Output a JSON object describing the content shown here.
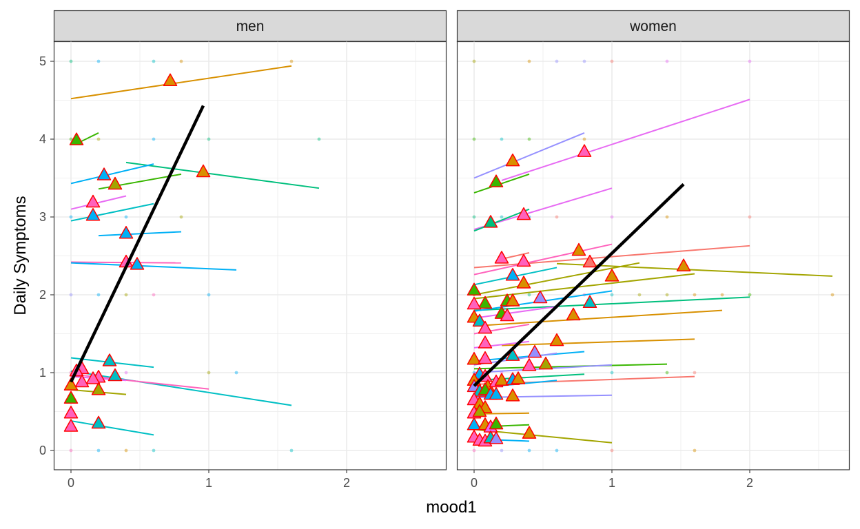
{
  "chart_data": {
    "type": "scatter",
    "xlabel": "mood1",
    "ylabel": "Daily Symptoms",
    "xlim": [
      -0.12,
      2.72
    ],
    "ylim": [
      -0.25,
      5.25
    ],
    "x_ticks": [
      "0",
      "1",
      "2"
    ],
    "y_ticks": [
      "0",
      "1",
      "2",
      "3",
      "4",
      "5"
    ],
    "grid": true,
    "colors": {
      "strip_fill": "#d9d9d9",
      "panel_border": "#333333",
      "grid_major": "#ebebeb",
      "marker_edge": "#ff0000",
      "overall_line": "#000000",
      "palette": [
        "#F8766D",
        "#D89000",
        "#A3A500",
        "#39B600",
        "#00BF7D",
        "#00BFC4",
        "#00B0F6",
        "#9590FF",
        "#E76BF3",
        "#FF62BC"
      ]
    },
    "panels": [
      {
        "name": "men",
        "overall_line": [
          [
            0,
            0.88
          ],
          [
            0.96,
            4.43
          ]
        ],
        "subject_lines": [
          [
            0,
            4.52,
            1.6,
            4.94,
            1
          ],
          [
            0.05,
            3.95,
            0.2,
            4.08,
            3
          ],
          [
            0.4,
            3.7,
            1.8,
            3.37,
            4
          ],
          [
            0,
            3.43,
            0.6,
            3.68,
            6
          ],
          [
            0.2,
            3.36,
            0.8,
            3.55,
            3
          ],
          [
            0,
            3.1,
            0.4,
            3.27,
            8
          ],
          [
            0,
            2.95,
            0.6,
            3.17,
            5
          ],
          [
            0.2,
            2.76,
            0.8,
            2.81,
            6
          ],
          [
            0,
            2.42,
            0.8,
            2.41,
            9
          ],
          [
            0,
            2.41,
            1.2,
            2.32,
            6
          ],
          [
            0,
            1.19,
            0.6,
            1.07,
            5
          ],
          [
            0,
            1.02,
            1.6,
            0.58,
            5
          ],
          [
            0,
            0.98,
            1.0,
            0.79,
            9
          ],
          [
            0,
            0.95,
            0.4,
            0.9,
            8
          ],
          [
            0,
            0.78,
            0.4,
            0.72,
            2
          ],
          [
            0,
            0.38,
            0.6,
            0.2,
            5
          ]
        ],
        "points": [
          [
            0,
            5,
            4
          ],
          [
            0.2,
            5,
            6
          ],
          [
            0.6,
            5,
            5
          ],
          [
            0.8,
            5,
            1
          ],
          [
            1.6,
            5,
            1
          ],
          [
            0,
            4,
            3
          ],
          [
            0.2,
            4,
            2
          ],
          [
            0.6,
            4,
            6
          ],
          [
            1.0,
            4,
            4
          ],
          [
            1.8,
            4,
            4
          ],
          [
            0,
            3,
            6
          ],
          [
            0.4,
            3,
            6
          ],
          [
            0.8,
            3,
            2
          ],
          [
            0,
            2,
            7
          ],
          [
            0.2,
            2,
            6
          ],
          [
            0.4,
            2,
            2
          ],
          [
            0.6,
            2,
            9
          ],
          [
            1.0,
            2,
            6
          ],
          [
            0,
            1,
            9
          ],
          [
            0.4,
            1,
            8
          ],
          [
            1.0,
            1,
            2
          ],
          [
            1.2,
            1,
            6
          ],
          [
            0,
            0,
            9
          ],
          [
            0.2,
            0,
            6
          ],
          [
            0.4,
            0,
            1
          ],
          [
            0.6,
            0,
            5
          ],
          [
            1.6,
            0,
            5
          ]
        ],
        "means": [
          [
            0.72,
            4.75,
            1
          ],
          [
            0.04,
            3.99,
            3
          ],
          [
            0.96,
            3.58,
            1
          ],
          [
            0.24,
            3.54,
            6
          ],
          [
            0.32,
            3.42,
            2
          ],
          [
            0.16,
            3.19,
            9
          ],
          [
            0.16,
            3.02,
            6
          ],
          [
            0.4,
            2.79,
            6
          ],
          [
            0.4,
            2.42,
            9
          ],
          [
            0.48,
            2.39,
            6
          ],
          [
            0.28,
            1.15,
            5
          ],
          [
            0.08,
            1.05,
            9
          ],
          [
            0.04,
            1.02,
            9
          ],
          [
            0.2,
            0.94,
            9
          ],
          [
            0.32,
            0.96,
            5
          ],
          [
            0.16,
            0.92,
            9
          ],
          [
            0.08,
            0.88,
            9
          ],
          [
            0.2,
            0.78,
            2
          ],
          [
            0,
            0.84,
            1
          ],
          [
            0,
            0.67,
            3
          ],
          [
            0,
            0.48,
            9
          ],
          [
            0,
            0.31,
            9
          ],
          [
            0.2,
            0.35,
            5
          ]
        ]
      },
      {
        "name": "women",
        "overall_line": [
          [
            0,
            0.83
          ],
          [
            1.52,
            3.42
          ]
        ],
        "subject_lines": [
          [
            0,
            3.5,
            0.8,
            4.08,
            7
          ],
          [
            0.2,
            3.47,
            2.0,
            4.51,
            8
          ],
          [
            0,
            3.31,
            0.4,
            3.55,
            3
          ],
          [
            0,
            2.84,
            1.0,
            3.37,
            8
          ],
          [
            0,
            2.82,
            0.4,
            3.1,
            4
          ],
          [
            0,
            2.35,
            2.0,
            2.63,
            0
          ],
          [
            0,
            2.26,
            1.0,
            2.65,
            9
          ],
          [
            0.2,
            2.46,
            0.4,
            2.54,
            0
          ],
          [
            0,
            2.0,
            1.2,
            2.41,
            2
          ],
          [
            0.6,
            2.4,
            2.6,
            2.24,
            2
          ],
          [
            0,
            2.13,
            0.6,
            2.35,
            5
          ],
          [
            0,
            1.95,
            1.6,
            2.27,
            2
          ],
          [
            0,
            1.8,
            2.0,
            1.97,
            4
          ],
          [
            0,
            1.79,
            1.0,
            2.05,
            6
          ],
          [
            0,
            1.7,
            0.6,
            1.85,
            8
          ],
          [
            0,
            1.5,
            0.4,
            1.62,
            9
          ],
          [
            0,
            1.6,
            1.8,
            1.8,
            1
          ],
          [
            0.2,
            1.35,
            1.6,
            1.43,
            1
          ],
          [
            0,
            1.32,
            0.4,
            1.4,
            8
          ],
          [
            0,
            1.15,
            0.8,
            1.27,
            6
          ],
          [
            0,
            1.1,
            0.6,
            1.25,
            7
          ],
          [
            0,
            1.05,
            1.4,
            1.11,
            3
          ],
          [
            0,
            1.0,
            1.0,
            1.1,
            7
          ],
          [
            0,
            0.85,
            1.6,
            0.95,
            0
          ],
          [
            0,
            0.8,
            0.6,
            0.9,
            6
          ],
          [
            0,
            0.9,
            0.8,
            0.98,
            4
          ],
          [
            0,
            0.68,
            1.0,
            0.71,
            7
          ],
          [
            0,
            0.47,
            0.4,
            0.48,
            1
          ],
          [
            0,
            0.3,
            0.4,
            0.33,
            3
          ],
          [
            0,
            0.27,
            1.0,
            0.1,
            2
          ],
          [
            0.1,
            0.14,
            0.4,
            0.12,
            6
          ]
        ],
        "points": [
          [
            0,
            5,
            2
          ],
          [
            0.4,
            5,
            1
          ],
          [
            0.6,
            5,
            7
          ],
          [
            0.8,
            5,
            7
          ],
          [
            1.0,
            5,
            0
          ],
          [
            1.4,
            5,
            8
          ],
          [
            2.0,
            5,
            8
          ],
          [
            0,
            4,
            3
          ],
          [
            0.2,
            4,
            5
          ],
          [
            0.4,
            4,
            3
          ],
          [
            0.8,
            4,
            1
          ],
          [
            0,
            3,
            4
          ],
          [
            0.2,
            3,
            5
          ],
          [
            0.4,
            3,
            6
          ],
          [
            0.6,
            3,
            0
          ],
          [
            1.0,
            3,
            8
          ],
          [
            1.4,
            3,
            1
          ],
          [
            2.0,
            3,
            0
          ],
          [
            0,
            2,
            2
          ],
          [
            0.4,
            2,
            4
          ],
          [
            0.8,
            2,
            9
          ],
          [
            1.0,
            2,
            5
          ],
          [
            1.2,
            2,
            2
          ],
          [
            1.4,
            2,
            2
          ],
          [
            1.6,
            2,
            1
          ],
          [
            1.8,
            2,
            1
          ],
          [
            2.0,
            2,
            3
          ],
          [
            2.6,
            2,
            1
          ],
          [
            0,
            1,
            6
          ],
          [
            0.2,
            1,
            8
          ],
          [
            1.0,
            1,
            5
          ],
          [
            1.4,
            1,
            3
          ],
          [
            1.6,
            1,
            0
          ],
          [
            0,
            0,
            9
          ],
          [
            0.2,
            0,
            7
          ],
          [
            0.4,
            0,
            6
          ],
          [
            0.6,
            0,
            6
          ],
          [
            1.0,
            0,
            0
          ],
          [
            1.6,
            0,
            1
          ]
        ],
        "means": [
          [
            0.8,
            3.84,
            9
          ],
          [
            0.28,
            3.72,
            1
          ],
          [
            0.16,
            3.45,
            3
          ],
          [
            0.36,
            3.03,
            9
          ],
          [
            0.12,
            2.93,
            4
          ],
          [
            0.76,
            2.57,
            1
          ],
          [
            0.2,
            2.47,
            9
          ],
          [
            0.36,
            2.43,
            9
          ],
          [
            0.84,
            2.42,
            0
          ],
          [
            1.52,
            2.37,
            1
          ],
          [
            0.28,
            2.25,
            6
          ],
          [
            0.36,
            2.15,
            1
          ],
          [
            1.0,
            2.24,
            1
          ],
          [
            0,
            2.06,
            3
          ],
          [
            0.48,
            1.96,
            7
          ],
          [
            0.84,
            1.9,
            5
          ],
          [
            0.24,
            1.92,
            3
          ],
          [
            0.28,
            1.92,
            1
          ],
          [
            0.08,
            1.89,
            3
          ],
          [
            0,
            1.88,
            9
          ],
          [
            0.2,
            1.76,
            3
          ],
          [
            0.24,
            1.73,
            9
          ],
          [
            0.72,
            1.74,
            1
          ],
          [
            0,
            1.71,
            1
          ],
          [
            0.04,
            1.66,
            5
          ],
          [
            0.08,
            1.57,
            9
          ],
          [
            0.6,
            1.41,
            1
          ],
          [
            0.08,
            1.38,
            9
          ],
          [
            0.28,
            1.22,
            5
          ],
          [
            0.44,
            1.26,
            7
          ],
          [
            0,
            1.17,
            1
          ],
          [
            0.08,
            1.18,
            9
          ],
          [
            0.52,
            1.11,
            2
          ],
          [
            0.4,
            1.09,
            9
          ],
          [
            0.04,
            0.98,
            6
          ],
          [
            0.08,
            0.95,
            9
          ],
          [
            0,
            0.9,
            1
          ],
          [
            0.1,
            0.82,
            1
          ],
          [
            0.16,
            0.88,
            9
          ],
          [
            0.2,
            0.9,
            1
          ],
          [
            0.28,
            0.91,
            6
          ],
          [
            0.32,
            0.92,
            1
          ],
          [
            0,
            0.82,
            7
          ],
          [
            0.04,
            0.76,
            5
          ],
          [
            0.08,
            0.78,
            3
          ],
          [
            0.12,
            0.72,
            6
          ],
          [
            0.16,
            0.72,
            6
          ],
          [
            0.28,
            0.7,
            1
          ],
          [
            0,
            0.65,
            9
          ],
          [
            0.04,
            0.6,
            1
          ],
          [
            0.08,
            0.55,
            1
          ],
          [
            0,
            0.48,
            9
          ],
          [
            0.04,
            0.5,
            2
          ],
          [
            0,
            0.33,
            6
          ],
          [
            0.08,
            0.33,
            1
          ],
          [
            0.12,
            0.3,
            8
          ],
          [
            0.16,
            0.34,
            3
          ],
          [
            0,
            0.17,
            9
          ],
          [
            0.04,
            0.13,
            9
          ],
          [
            0.08,
            0.12,
            9
          ],
          [
            0.12,
            0.16,
            5
          ],
          [
            0.16,
            0.15,
            7
          ],
          [
            0.4,
            0.22,
            1
          ]
        ]
      }
    ]
  }
}
